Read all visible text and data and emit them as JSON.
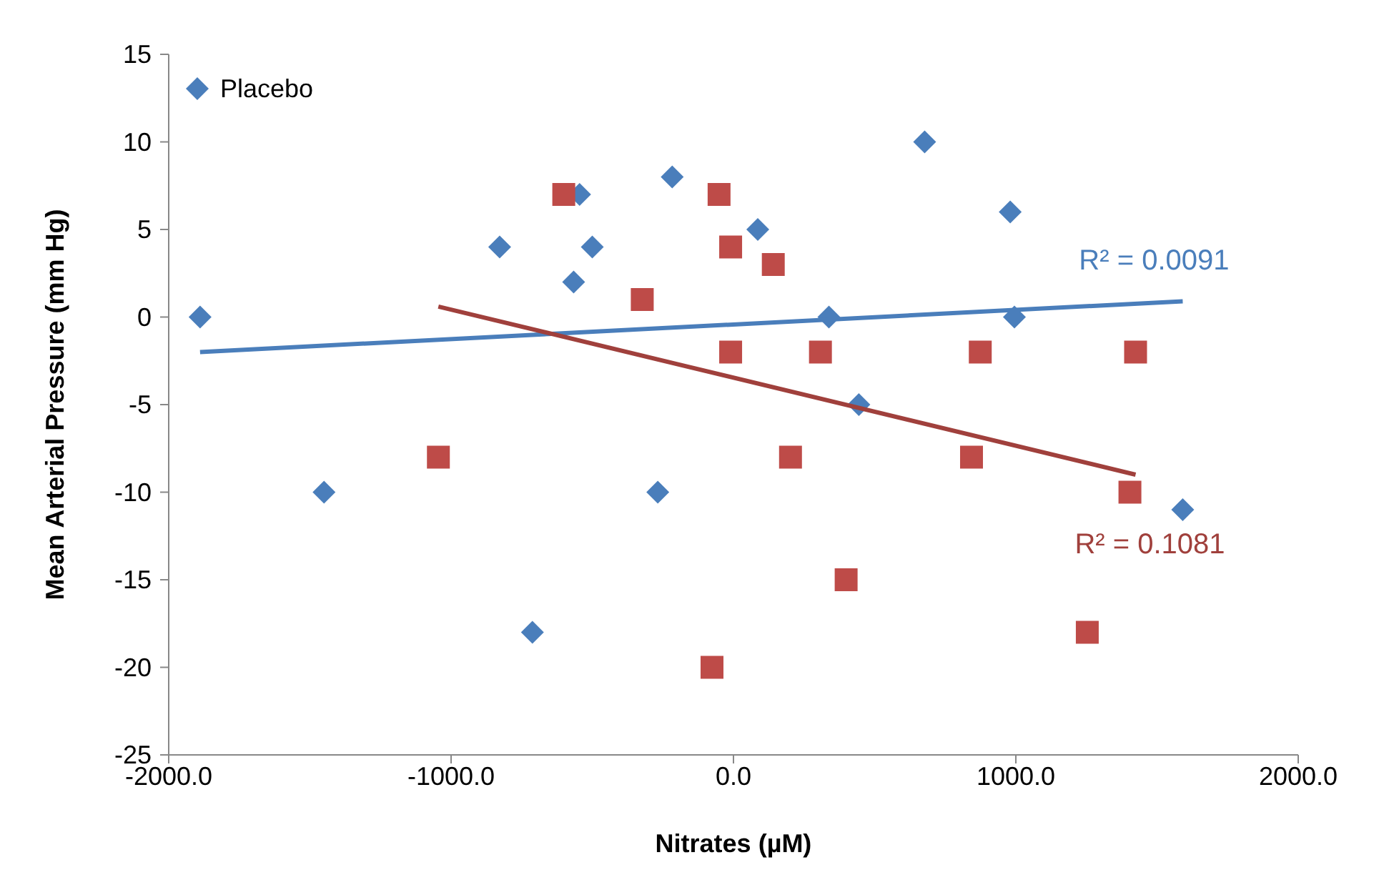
{
  "chart_data": {
    "type": "scatter",
    "xlabel": "Nitrates (µM)",
    "ylabel": "Mean Arterial Pressure (mm Hg)",
    "xlim": [
      -2000,
      2000
    ],
    "xticks": [
      {
        "value": -2000,
        "label": "-2000.0"
      },
      {
        "value": -1000,
        "label": "-1000.0"
      },
      {
        "value": 0,
        "label": "0.0"
      },
      {
        "value": 1000,
        "label": "1000.0"
      },
      {
        "value": 2000,
        "label": "2000.0"
      }
    ],
    "ylim": [
      -25,
      15
    ],
    "yticks": [
      -25,
      -20,
      -15,
      -10,
      -5,
      0,
      5,
      10,
      15
    ],
    "grid": false,
    "legend": "top left",
    "series": [
      {
        "name": "Placebo",
        "marker": "diamond",
        "color": "#4a7ebb",
        "x": [
          -1889,
          -1450,
          -828,
          -712,
          -566,
          -545,
          -500,
          -268,
          -217,
          86,
          338,
          444,
          677,
          980,
          995,
          1591
        ],
        "values": [
          0,
          -10,
          4,
          -18,
          2,
          7,
          4,
          -10,
          8,
          5,
          0,
          -5,
          10,
          6,
          0,
          -11
        ]
      },
      {
        "marker": "square",
        "color": "#be4b48",
        "x": [
          -1045,
          -601,
          -323,
          -76,
          -51,
          -10,
          -10,
          141,
          308,
          202,
          399,
          874,
          843,
          1253,
          1404,
          1424
        ],
        "values": [
          -8,
          7,
          1,
          -20,
          7,
          4,
          -2,
          3,
          -2,
          -8,
          -15,
          -2,
          -8,
          -18,
          -10,
          -2
        ]
      },
      {
        "type": "line",
        "marker": "none",
        "color": "#4a7ebb",
        "x": [
          -1889,
          1591
        ],
        "values": [
          -2,
          0.9
        ]
      },
      {
        "type": "line",
        "marker": "none",
        "color": "#a0403c",
        "x": [
          -1045,
          1424
        ],
        "values": [
          0.6,
          -9
        ]
      }
    ],
    "annotations": [
      "R² = 0.0091",
      "R² = 0.1081"
    ]
  }
}
